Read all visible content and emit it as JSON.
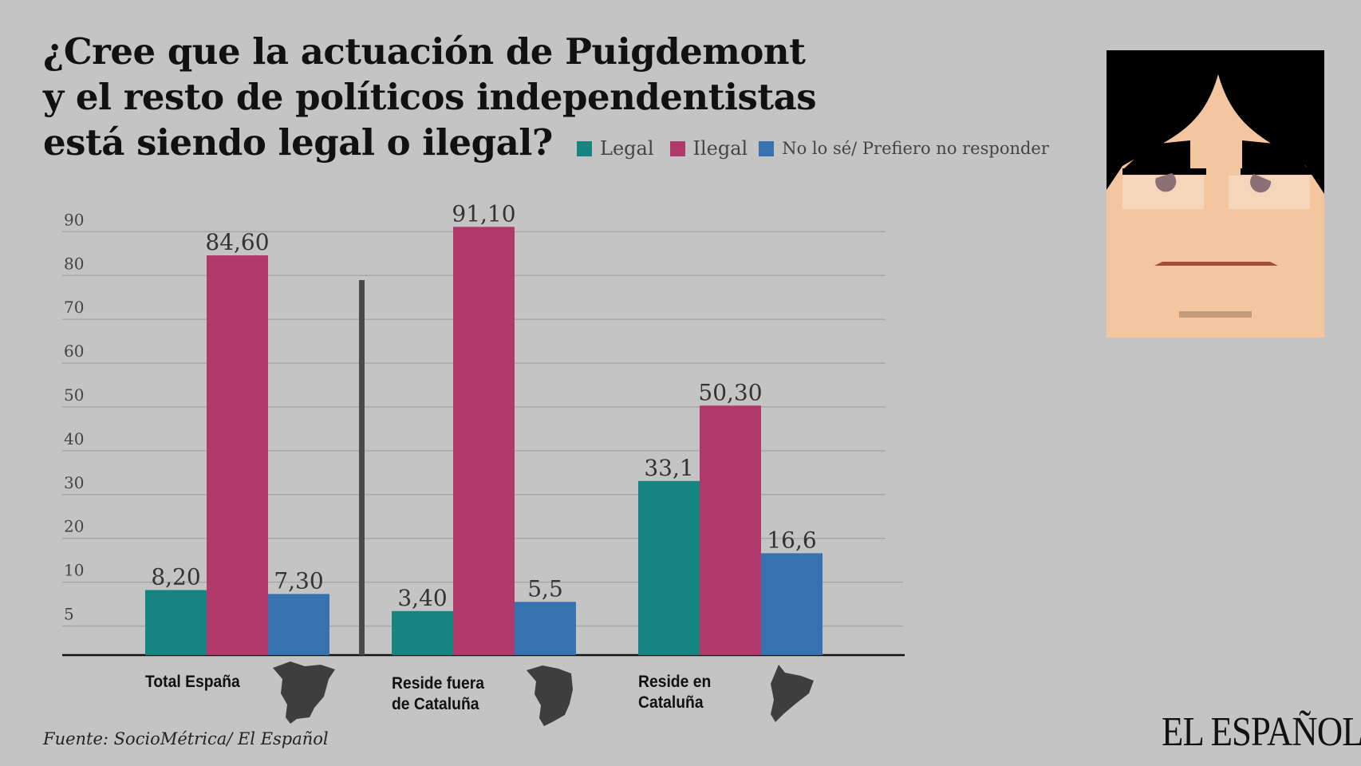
{
  "title_lines": [
    "¿Cree que la actuación de Puigdemont",
    "y el resto de políticos independentistas",
    "está siendo legal o ilegal?"
  ],
  "legend": [
    {
      "label": "Legal",
      "color": "#168480"
    },
    {
      "label": "Ilegal",
      "color": "#b0386b"
    },
    {
      "label": "No lo sé/ Prefiero no responder",
      "color": "#3671b0"
    }
  ],
  "source": "Fuente: SocioMétrica/ El Español",
  "logo": "EL ESPAÑOL",
  "chart_data": {
    "type": "bar",
    "title": "¿Cree que la actuación de Puigdemont y el resto de políticos independentistas está siendo legal o ilegal?",
    "categories": [
      "Total España",
      "Reside fuera de Cataluña",
      "Reside en Cataluña"
    ],
    "category_lines": [
      [
        "Total España"
      ],
      [
        "Reside fuera",
        "de Cataluña"
      ],
      [
        "Reside en",
        "Cataluña"
      ]
    ],
    "category_icons": [
      "spain-map-icon",
      "spain-without-catalonia-map-icon",
      "catalonia-map-icon"
    ],
    "series": [
      {
        "name": "Legal",
        "values": [
          8.2,
          3.4,
          33.1
        ],
        "labels": [
          "8,20",
          "3,40",
          "33,1"
        ],
        "color": "#168480"
      },
      {
        "name": "Ilegal",
        "values": [
          84.6,
          91.1,
          50.3
        ],
        "labels": [
          "84,60",
          "91,10",
          "50,30"
        ],
        "color": "#b0386b"
      },
      {
        "name": "No lo sé/ Prefiero no responder",
        "values": [
          7.3,
          5.5,
          16.6
        ],
        "labels": [
          "7,30",
          "5,5",
          "16,6"
        ],
        "color": "#3671b0"
      }
    ],
    "yticks": [
      "5",
      "10",
      "20",
      "30",
      "40",
      "50",
      "60",
      "70",
      "80",
      "90"
    ],
    "ylim": [
      0,
      90
    ],
    "grid": true,
    "legend_position": "top"
  }
}
